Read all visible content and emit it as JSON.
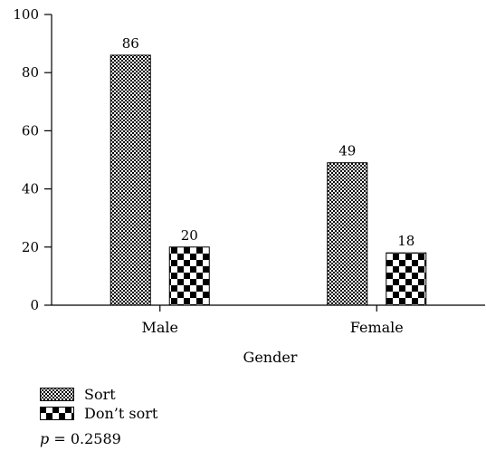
{
  "chart_data": {
    "type": "bar",
    "categories": [
      "Male",
      "Female"
    ],
    "series": [
      {
        "name": "Sort",
        "values": [
          86,
          49
        ],
        "pattern": "fine-checker"
      },
      {
        "name": "Don’t sort",
        "values": [
          20,
          18
        ],
        "pattern": "coarse-checker"
      }
    ],
    "title": "",
    "xlabel": "Gender",
    "ylabel": "",
    "ylim": [
      0,
      100
    ],
    "yticks": [
      0,
      20,
      40,
      60,
      80,
      100
    ],
    "data_labels": true,
    "legend_position": "bottom-left",
    "grid": false
  },
  "footnote": {
    "p_symbol": "p",
    "p_rest": " = 0.2589"
  }
}
